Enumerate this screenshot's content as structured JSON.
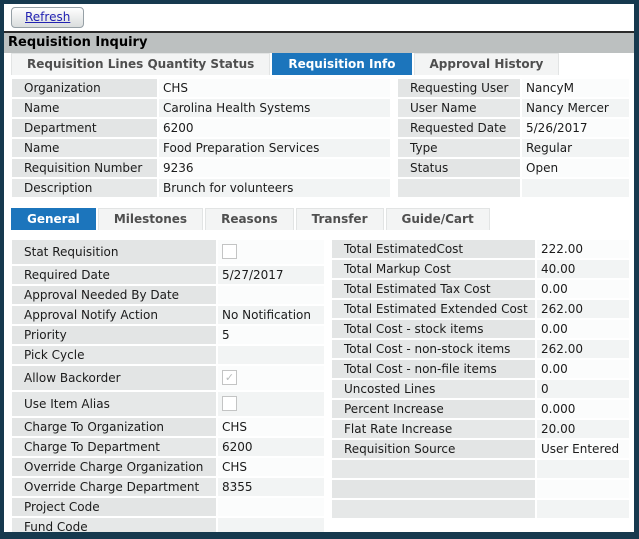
{
  "window": {
    "title": "Requisition Inquiry",
    "refresh_label": "Refresh"
  },
  "tabs_main": [
    {
      "label": "Requisition Lines Quantity Status",
      "active": false
    },
    {
      "label": "Requisition Info",
      "active": true
    },
    {
      "label": "Approval History",
      "active": false
    }
  ],
  "header_left": [
    {
      "label": "Organization",
      "value": "CHS"
    },
    {
      "label": "Name",
      "value": "Carolina Health Systems"
    },
    {
      "label": "Department",
      "value": "6200"
    },
    {
      "label": "Name",
      "value": "Food Preparation Services"
    },
    {
      "label": "Requisition Number",
      "value": "9236"
    },
    {
      "label": "Description",
      "value": "Brunch for volunteers"
    }
  ],
  "header_right": [
    {
      "label": "Requesting User",
      "value": "NancyM"
    },
    {
      "label": "User Name",
      "value": "Nancy Mercer"
    },
    {
      "label": "Requested Date",
      "value": "5/26/2017"
    },
    {
      "label": "Type",
      "value": "Regular"
    },
    {
      "label": "Status",
      "value": "Open"
    },
    {
      "label": "",
      "value": ""
    }
  ],
  "tabs_sub": [
    {
      "label": "General",
      "active": true
    },
    {
      "label": "Milestones",
      "active": false
    },
    {
      "label": "Reasons",
      "active": false
    },
    {
      "label": "Transfer",
      "active": false
    },
    {
      "label": "Guide/Cart",
      "active": false
    }
  ],
  "general_left": [
    {
      "label": "Stat Requisition",
      "type": "checkbox",
      "checked": false
    },
    {
      "label": "Required Date",
      "value": "5/27/2017"
    },
    {
      "label": "Approval Needed By Date",
      "value": ""
    },
    {
      "label": "Approval Notify Action",
      "value": "No Notification"
    },
    {
      "label": "Priority",
      "value": "5"
    },
    {
      "label": "Pick Cycle",
      "value": ""
    },
    {
      "label": "Allow Backorder",
      "type": "checkbox",
      "checked": true
    },
    {
      "label": "Use Item Alias",
      "type": "checkbox",
      "checked": false
    },
    {
      "label": "Charge To Organization",
      "value": "CHS"
    },
    {
      "label": "Charge To Department",
      "value": "6200"
    },
    {
      "label": "Override Charge Organization",
      "value": "CHS"
    },
    {
      "label": "Override Charge Department",
      "value": "8355"
    },
    {
      "label": "Project Code",
      "value": ""
    },
    {
      "label": "Fund Code",
      "value": ""
    }
  ],
  "general_right": [
    {
      "label": "Total EstimatedCost",
      "value": "222.00"
    },
    {
      "label": "Total Markup Cost",
      "value": "40.00"
    },
    {
      "label": "Total Estimated Tax Cost",
      "value": "0.00"
    },
    {
      "label": "Total Estimated Extended Cost",
      "value": "262.00"
    },
    {
      "label": "Total Cost - stock items",
      "value": "0.00"
    },
    {
      "label": "Total Cost - non-stock items",
      "value": "262.00"
    },
    {
      "label": "Total Cost - non-file items",
      "value": "0.00"
    },
    {
      "label": "Uncosted Lines",
      "value": "0"
    },
    {
      "label": "Percent Increase",
      "value": "0.000"
    },
    {
      "label": "Flat Rate Increase",
      "value": "20.00"
    },
    {
      "label": "Requisition Source",
      "value": "User Entered"
    },
    {
      "label": "",
      "value": ""
    },
    {
      "label": "",
      "value": ""
    },
    {
      "label": "",
      "value": ""
    }
  ],
  "colors": {
    "window_border": "#16394e",
    "active_tab_blue": "#1c75bc",
    "title_bar_gray": "#bcc0c0",
    "label_cell_gray": "#e3e5e5",
    "refresh_text_blue": "#2222b2"
  }
}
